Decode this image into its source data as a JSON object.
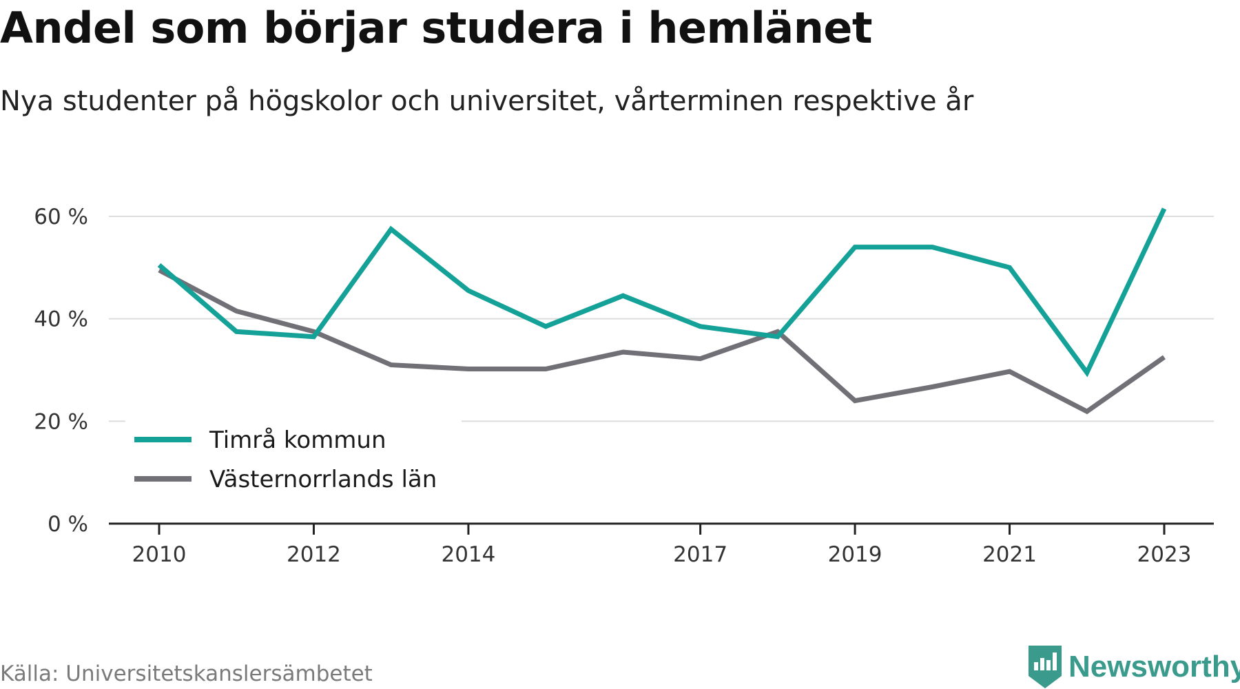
{
  "title": "Andel som börjar studera i hemlänet",
  "subtitle": "Nya studenter på högskolor och universitet, vårterminen respektive år",
  "source": "Källa: Universitetskanslersämbetet",
  "brand": {
    "name": "Newsworthy",
    "icon": "newsworthy-logo-icon",
    "color": "#3a9a8c"
  },
  "chart_data": {
    "type": "line",
    "x": [
      2010,
      2011,
      2012,
      2013,
      2014,
      2015,
      2016,
      2017,
      2018,
      2019,
      2020,
      2021,
      2022,
      2023
    ],
    "x_tick_labels": [
      "2010",
      "2012",
      "2014",
      "2017",
      "2019",
      "2021",
      "2023"
    ],
    "y_ticks": [
      0,
      20,
      40,
      60
    ],
    "y_tick_labels": [
      "0 %",
      "20 %",
      "40 %",
      "60 %"
    ],
    "ylim": [
      0,
      60
    ],
    "grid": true,
    "legend_position": "bottom-left",
    "series": [
      {
        "name": "Timrå kommun",
        "color": "#14a198",
        "values": [
          50.5,
          37.5,
          36.5,
          57.5,
          45.5,
          38.5,
          44.5,
          38.5,
          36.5,
          54,
          54,
          50,
          29.5,
          61.5
        ]
      },
      {
        "name": "Västernorrlands län",
        "color": "#717077",
        "values": [
          49.5,
          41.5,
          37.5,
          31,
          30.2,
          30.2,
          33.5,
          32.2,
          37.5,
          24,
          26.7,
          29.7,
          21.9,
          32.5
        ]
      }
    ]
  }
}
